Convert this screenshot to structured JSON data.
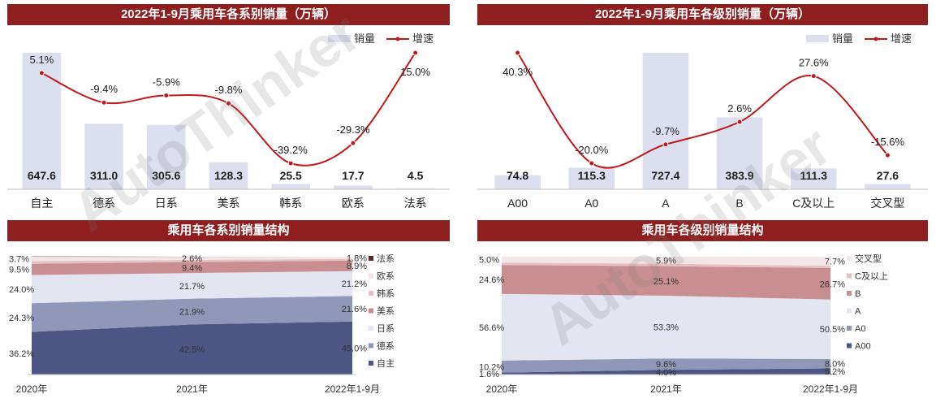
{
  "panels": {
    "p1_title": "2022年1-9月乘用车各系别销量（万辆）",
    "p2_title": "2022年1-9月乘用车各级别销量（万辆）",
    "p3_title": "乘用车各系别销量结构",
    "p4_title": "乘用车各级别销量结构"
  },
  "watermark": "AutoThinker",
  "colors": {
    "title_bg": "#8e1f1e",
    "bar": "#dcdfee",
    "line": "#c0181b"
  },
  "chart_data": [
    {
      "type": "bar",
      "title": "2022年1-9月乘用车各系别销量（万辆）",
      "categories": [
        "自主",
        "德系",
        "日系",
        "美系",
        "韩系",
        "欧系",
        "法系"
      ],
      "series": [
        {
          "name": "销量",
          "values": [
            647.6,
            311.0,
            305.6,
            128.3,
            25.5,
            17.7,
            4.5
          ],
          "labels": [
            "647.6",
            "311.0",
            "305.6",
            "128.3",
            "25.5",
            "17.7",
            "4.5"
          ]
        },
        {
          "name": "增速",
          "type": "line",
          "values": [
            5.1,
            -9.4,
            -5.9,
            -9.8,
            -39.2,
            -29.3,
            15.0
          ],
          "labels": [
            "5.1%",
            "-9.4%",
            "-5.9%",
            "-9.8%",
            "-39.2%",
            "-29.3%",
            "15.0%"
          ]
        }
      ],
      "legend": {
        "bar": "销量",
        "line": "增速",
        "position": "top-right"
      }
    },
    {
      "type": "bar",
      "title": "2022年1-9月乘用车各级别销量（万辆）",
      "categories": [
        "A00",
        "A0",
        "A",
        "B",
        "C及以上",
        "交叉型"
      ],
      "series": [
        {
          "name": "销量",
          "values": [
            74.8,
            115.3,
            727.4,
            383.9,
            111.3,
            27.6
          ],
          "labels": [
            "74.8",
            "115.3",
            "727.4",
            "383.9",
            "111.3",
            "27.6"
          ]
        },
        {
          "name": "增速",
          "type": "line",
          "values": [
            40.3,
            -20.0,
            -9.7,
            2.6,
            27.6,
            -15.6
          ],
          "labels": [
            "40.3%",
            "-20.0%",
            "-9.7%",
            "2.6%",
            "27.6%",
            "-15.6%"
          ]
        }
      ],
      "legend": {
        "bar": "销量",
        "line": "增速",
        "position": "top-right"
      }
    },
    {
      "type": "area",
      "stacked": true,
      "title": "乘用车各系别销量结构",
      "x": [
        "2020年",
        "2021年",
        "2022年1-9月"
      ],
      "series": [
        {
          "name": "自主",
          "color": "#4c5583",
          "values": [
            36.2,
            42.5,
            45.0
          ],
          "labels": [
            "36.2%",
            "42.5%",
            "45.0%"
          ]
        },
        {
          "name": "德系",
          "color": "#9197b9",
          "values": [
            24.3,
            21.9,
            21.6
          ],
          "labels": [
            "24.3%",
            "21.9%",
            "21.6%"
          ]
        },
        {
          "name": "日系",
          "color": "#e3e5f0",
          "values": [
            24.0,
            21.7,
            21.2
          ],
          "labels": [
            "24.0%",
            "21.7%",
            "21.2%"
          ]
        },
        {
          "name": "美系",
          "color": "#c98e91",
          "values": [
            9.5,
            9.4,
            8.9
          ],
          "labels": [
            "9.5%",
            "9.4%",
            "8.9%"
          ]
        },
        {
          "name": "韩系",
          "color": "#e6c1c3",
          "values": [
            2.3,
            1.8,
            1.5
          ],
          "labels": [
            "",
            "",
            ""
          ]
        },
        {
          "name": "欧系",
          "color": "#f2e6e7",
          "values": [
            3.7,
            2.6,
            1.8
          ],
          "labels": [
            "3.7%",
            "2.6%",
            "1.8%"
          ]
        },
        {
          "name": "法系",
          "color": "#5b2b2c",
          "values": [
            0.3,
            0.1,
            0.0
          ],
          "labels": [
            "",
            "",
            ""
          ]
        }
      ],
      "legend_position": "right"
    },
    {
      "type": "area",
      "stacked": true,
      "title": "乘用车各级别销量结构",
      "x": [
        "2020年",
        "2021年",
        "2022年1-9月"
      ],
      "series": [
        {
          "name": "A00",
          "color": "#4c5583",
          "values": [
            1.6,
            4.0,
            5.2
          ],
          "labels": [
            "1.6%",
            "4.0%",
            "5.2%"
          ]
        },
        {
          "name": "A0",
          "color": "#9197b9",
          "values": [
            10.2,
            9.6,
            8.0
          ],
          "labels": [
            "10.2%",
            "9.6%",
            "8.0%"
          ]
        },
        {
          "name": "A",
          "color": "#e3e5f0",
          "values": [
            56.6,
            53.3,
            50.5
          ],
          "labels": [
            "56.6%",
            "53.3%",
            "50.5%"
          ]
        },
        {
          "name": "B",
          "color": "#c98e91",
          "values": [
            24.6,
            25.1,
            26.7
          ],
          "labels": [
            "24.6%",
            "25.1%",
            "26.7%"
          ]
        },
        {
          "name": "C及以上",
          "color": "#e6c1c3",
          "values": [
            2.0,
            2.1,
            1.9
          ],
          "labels": [
            "",
            "",
            ""
          ]
        },
        {
          "name": "交叉型",
          "color": "#f2e6e7",
          "values": [
            5.0,
            5.9,
            7.7
          ],
          "labels": [
            "5.0%",
            "5.9%",
            "7.7%"
          ]
        }
      ],
      "legend_position": "right"
    }
  ]
}
